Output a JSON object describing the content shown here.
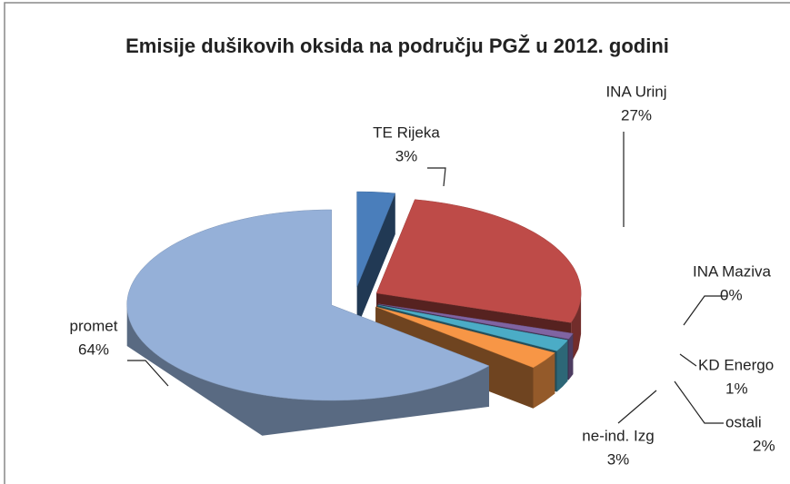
{
  "chart_data": {
    "type": "pie",
    "title": "Emisije dušikovih oksida na području PGŽ u 2012. godini",
    "categories": [
      "TE Rijeka",
      "INA Urinj",
      "INA Maziva",
      "KD Energo",
      "ostali",
      "ne-ind. Izg",
      "promet"
    ],
    "values": [
      3,
      27,
      0,
      1,
      2,
      3,
      64
    ],
    "value_labels": [
      "3%",
      "27%",
      "0%",
      "1%",
      "2%",
      "3%",
      "64%"
    ],
    "colors": [
      "#4a7ebb",
      "#be4b48",
      "#9bbb59",
      "#8064a2",
      "#4bacc6",
      "#f79646",
      "#95b0d8"
    ]
  }
}
